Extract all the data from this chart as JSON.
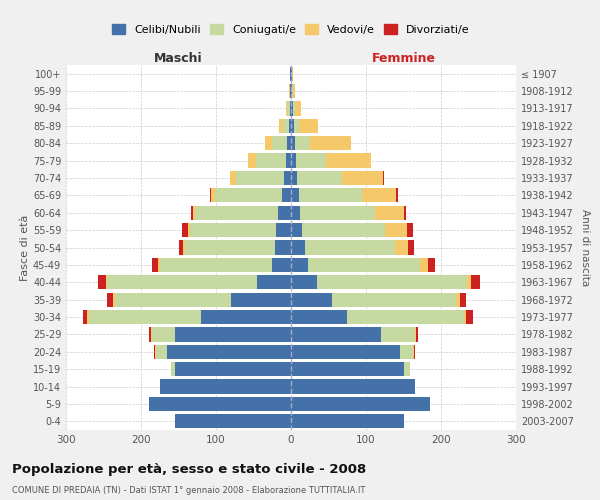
{
  "age_groups": [
    "0-4",
    "5-9",
    "10-14",
    "15-19",
    "20-24",
    "25-29",
    "30-34",
    "35-39",
    "40-44",
    "45-49",
    "50-54",
    "55-59",
    "60-64",
    "65-69",
    "70-74",
    "75-79",
    "80-84",
    "85-89",
    "90-94",
    "95-99",
    "100+"
  ],
  "birth_years": [
    "2003-2007",
    "1998-2002",
    "1993-1997",
    "1988-1992",
    "1983-1987",
    "1978-1982",
    "1973-1977",
    "1968-1972",
    "1963-1967",
    "1958-1962",
    "1953-1957",
    "1948-1952",
    "1943-1947",
    "1938-1942",
    "1933-1937",
    "1928-1932",
    "1923-1927",
    "1918-1922",
    "1913-1917",
    "1908-1912",
    "≤ 1907"
  ],
  "males": {
    "single": [
      155,
      190,
      175,
      155,
      165,
      155,
      120,
      80,
      45,
      25,
      22,
      20,
      18,
      12,
      9,
      7,
      5,
      3,
      2,
      1,
      1
    ],
    "married": [
      0,
      0,
      0,
      5,
      15,
      30,
      150,
      155,
      200,
      150,
      120,
      115,
      110,
      90,
      65,
      40,
      20,
      8,
      3,
      1,
      0
    ],
    "widowed": [
      0,
      0,
      0,
      0,
      2,
      2,
      2,
      2,
      2,
      2,
      2,
      2,
      3,
      5,
      8,
      10,
      10,
      5,
      2,
      1,
      0
    ],
    "divorced": [
      0,
      0,
      0,
      0,
      1,
      2,
      5,
      8,
      10,
      8,
      5,
      8,
      2,
      1,
      0,
      0,
      0,
      0,
      0,
      0,
      0
    ]
  },
  "females": {
    "single": [
      150,
      185,
      165,
      150,
      145,
      120,
      75,
      55,
      35,
      22,
      18,
      15,
      12,
      10,
      8,
      6,
      5,
      4,
      2,
      1,
      1
    ],
    "married": [
      0,
      0,
      0,
      8,
      18,
      45,
      155,
      165,
      200,
      150,
      120,
      110,
      100,
      85,
      60,
      40,
      20,
      7,
      3,
      1,
      0
    ],
    "widowed": [
      0,
      0,
      0,
      0,
      1,
      2,
      3,
      5,
      5,
      10,
      18,
      30,
      38,
      45,
      55,
      60,
      55,
      25,
      8,
      3,
      1
    ],
    "divorced": [
      0,
      0,
      0,
      0,
      1,
      2,
      10,
      8,
      12,
      10,
      8,
      8,
      3,
      2,
      1,
      0,
      0,
      0,
      0,
      0,
      0
    ]
  },
  "colors": {
    "single": "#4472a8",
    "married": "#c5d9a0",
    "widowed": "#f5c96a",
    "divorced": "#cc2222"
  },
  "title": "Popolazione per età, sesso e stato civile - 2008",
  "subtitle": "COMUNE DI PREDAIA (TN) - Dati ISTAT 1° gennaio 2008 - Elaborazione TUTTITALIA.IT",
  "xlabel_left": "Maschi",
  "xlabel_right": "Femmine",
  "ylabel_left": "Fasce di età",
  "ylabel_right": "Anni di nascita",
  "xlim": 300,
  "legend_labels": [
    "Celibi/Nubili",
    "Coniugati/e",
    "Vedovi/e",
    "Divorziati/e"
  ],
  "bg_color": "#f0f0f0",
  "plot_bg": "#ffffff"
}
